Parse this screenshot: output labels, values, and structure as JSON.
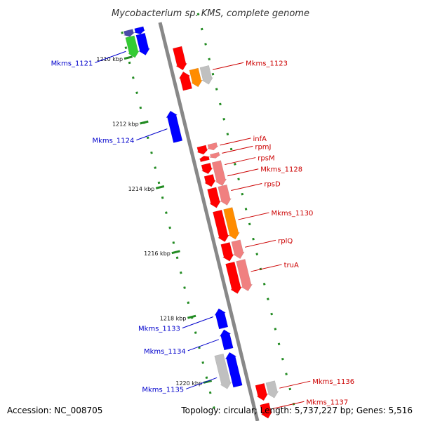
{
  "title": "Mycobacterium sp. KMS, complete genome",
  "footer": {
    "accession": "Accession: NC_008705",
    "summary": "Topology: circular; Length: 5,737,227 bp; Genes: 5,516"
  },
  "colors": {
    "background": "#ffffff",
    "backbone": "#888888",
    "ticks": "#228b22",
    "left_label": "#0000cc",
    "right_label": "#cc0000",
    "red": "#ff0000",
    "pink": "#f08080",
    "orange": "#ff8c00",
    "gray": "#c0c0c0",
    "blue": "#0000ff",
    "green": "#33cc33",
    "navy": "#4a4aa8"
  },
  "axis": {
    "start_kbp": 1209.2,
    "end_kbp": 1221.5,
    "tick_labels": [
      {
        "kbp": 1210,
        "label": "1210 kbp"
      },
      {
        "kbp": 1212,
        "label": "1212 kbp"
      },
      {
        "kbp": 1214,
        "label": "1214 kbp"
      },
      {
        "kbp": 1216,
        "label": "1216 kbp"
      },
      {
        "kbp": 1218,
        "label": "1218 kbp"
      },
      {
        "kbp": 1220,
        "label": "1220 kbp"
      }
    ]
  },
  "features": [
    {
      "lane": -3,
      "start": 1209.2,
      "end": 1209.4,
      "color": "navy",
      "dir": "+"
    },
    {
      "lane": -2,
      "start": 1209.2,
      "end": 1209.4,
      "color": "blue",
      "dir": "+"
    },
    {
      "lane": -3,
      "start": 1209.4,
      "end": 1210.05,
      "color": "green",
      "dir": "+"
    },
    {
      "lane": -2,
      "start": 1209.4,
      "end": 1210.05,
      "color": "blue",
      "dir": "+"
    },
    {
      "lane": 1,
      "start": 1210.05,
      "end": 1210.75,
      "color": "red",
      "dir": "+"
    },
    {
      "lane": 1,
      "start": 1210.8,
      "end": 1211.35,
      "color": "red",
      "dir": "-"
    },
    {
      "lane": 2,
      "start": 1210.8,
      "end": 1211.35,
      "color": "orange",
      "dir": "+"
    },
    {
      "lane": 3,
      "start": 1210.8,
      "end": 1211.35,
      "color": "gray",
      "dir": "+"
    },
    {
      "lane": -1,
      "start": 1211.85,
      "end": 1212.8,
      "color": "blue",
      "dir": "-"
    },
    {
      "lane": 1,
      "start": 1213.1,
      "end": 1213.35,
      "color": "red",
      "dir": "+"
    },
    {
      "lane": 2,
      "start": 1213.1,
      "end": 1213.3,
      "color": "pink",
      "dir": "+"
    },
    {
      "lane": 1,
      "start": 1213.4,
      "end": 1213.55,
      "color": "red",
      "dir": "-"
    },
    {
      "lane": 2,
      "start": 1213.4,
      "end": 1213.55,
      "color": "pink",
      "dir": "+"
    },
    {
      "lane": 1,
      "start": 1213.65,
      "end": 1213.95,
      "color": "red",
      "dir": "+"
    },
    {
      "lane": 2,
      "start": 1213.65,
      "end": 1214.4,
      "color": "pink",
      "dir": "+"
    },
    {
      "lane": 1,
      "start": 1214.0,
      "end": 1214.35,
      "color": "red",
      "dir": "+"
    },
    {
      "lane": 1,
      "start": 1214.4,
      "end": 1215.0,
      "color": "red",
      "dir": "+"
    },
    {
      "lane": 2,
      "start": 1214.4,
      "end": 1215.0,
      "color": "pink",
      "dir": "+"
    },
    {
      "lane": 1,
      "start": 1215.1,
      "end": 1216.05,
      "color": "red",
      "dir": "+"
    },
    {
      "lane": 2,
      "start": 1215.1,
      "end": 1216.05,
      "color": "orange",
      "dir": "+"
    },
    {
      "lane": 1,
      "start": 1216.1,
      "end": 1216.65,
      "color": "red",
      "dir": "+"
    },
    {
      "lane": 2,
      "start": 1216.1,
      "end": 1216.65,
      "color": "pink",
      "dir": "+"
    },
    {
      "lane": 1,
      "start": 1216.7,
      "end": 1217.65,
      "color": "red",
      "dir": "+"
    },
    {
      "lane": 2,
      "start": 1216.7,
      "end": 1217.65,
      "color": "pink",
      "dir": "+"
    },
    {
      "lane": -1,
      "start": 1217.95,
      "end": 1218.55,
      "color": "blue",
      "dir": "-"
    },
    {
      "lane": -1,
      "start": 1218.6,
      "end": 1219.2,
      "color": "blue",
      "dir": "-"
    },
    {
      "lane": -2,
      "start": 1219.3,
      "end": 1220.35,
      "color": "gray",
      "dir": "+"
    },
    {
      "lane": -1,
      "start": 1219.3,
      "end": 1220.35,
      "color": "blue",
      "dir": "-"
    },
    {
      "lane": 1,
      "start": 1220.45,
      "end": 1220.95,
      "color": "red",
      "dir": "+"
    },
    {
      "lane": 2,
      "start": 1220.45,
      "end": 1220.95,
      "color": "gray",
      "dir": "+"
    },
    {
      "lane": 1,
      "start": 1221.05,
      "end": 1221.5,
      "color": "red",
      "dir": "+"
    }
  ],
  "gene_labels": [
    {
      "side": "left",
      "text": "Mkms_1121",
      "kbp": 1209.8,
      "lane": -3
    },
    {
      "side": "left",
      "text": "Mkms_1124",
      "kbp": 1212.35,
      "lane": -1
    },
    {
      "side": "left",
      "text": "Mkms_1133",
      "kbp": 1218.15,
      "lane": -1
    },
    {
      "side": "left",
      "text": "Mkms_1134",
      "kbp": 1218.85,
      "lane": -1
    },
    {
      "side": "left",
      "text": "Mkms_1135",
      "kbp": 1219.95,
      "lane": -2
    },
    {
      "side": "right",
      "text": "Mkms_1123",
      "kbp": 1210.95,
      "lane": 3
    },
    {
      "side": "right",
      "text": "infA",
      "kbp": 1213.2,
      "lane": 2
    },
    {
      "side": "right",
      "text": "rpmJ",
      "kbp": 1213.45,
      "lane": 2
    },
    {
      "side": "right",
      "text": "rpsM",
      "kbp": 1213.8,
      "lane": 2
    },
    {
      "side": "right",
      "text": "Mkms_1128",
      "kbp": 1214.15,
      "lane": 2
    },
    {
      "side": "right",
      "text": "rpsD",
      "kbp": 1214.6,
      "lane": 2
    },
    {
      "side": "right",
      "text": "Mkms_1130",
      "kbp": 1215.5,
      "lane": 2
    },
    {
      "side": "right",
      "text": "rplQ",
      "kbp": 1216.35,
      "lane": 2
    },
    {
      "side": "right",
      "text": "truA",
      "kbp": 1217.1,
      "lane": 2
    },
    {
      "side": "right",
      "text": "Mkms_1136",
      "kbp": 1220.7,
      "lane": 2
    },
    {
      "side": "right",
      "text": "Mkms_1137",
      "kbp": 1221.25,
      "lane": 1
    }
  ]
}
